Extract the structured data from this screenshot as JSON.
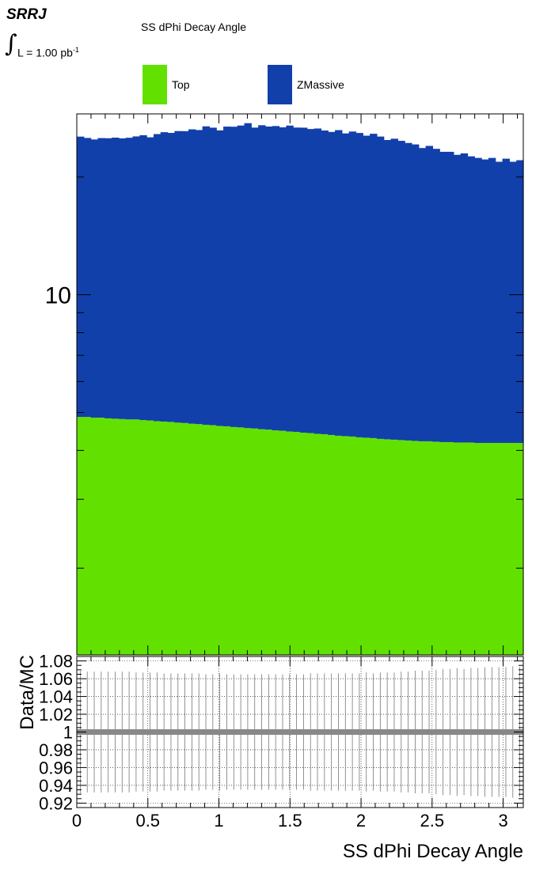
{
  "header": {
    "region": "SRRJ",
    "lumi_prefix": "L = 1.00 pb",
    "lumi_exp": "-1",
    "integral_symbol": "∫"
  },
  "legend": [
    {
      "label": "Top",
      "color": "#62e100"
    },
    {
      "label": "ZMassive",
      "color": "#1240ab"
    }
  ],
  "chart_data": [
    {
      "type": "bar",
      "stacked": true,
      "title": "SS dPhi Decay Angle",
      "xlabel": "",
      "ylabel": "",
      "y_scale": "log",
      "xlim": [
        0,
        3.1416
      ],
      "ylim": [
        1.2,
        29
      ],
      "yticks_labeled": [
        {
          "value": 10,
          "label": "10"
        }
      ],
      "bins": 64,
      "series": [
        {
          "name": "Top",
          "color": "#62e100",
          "values": [
            4.87,
            4.87,
            4.85,
            4.85,
            4.83,
            4.82,
            4.81,
            4.8,
            4.8,
            4.78,
            4.77,
            4.75,
            4.74,
            4.73,
            4.71,
            4.7,
            4.68,
            4.67,
            4.65,
            4.64,
            4.62,
            4.61,
            4.59,
            4.58,
            4.56,
            4.55,
            4.53,
            4.52,
            4.5,
            4.49,
            4.47,
            4.46,
            4.44,
            4.43,
            4.41,
            4.4,
            4.38,
            4.36,
            4.35,
            4.34,
            4.32,
            4.31,
            4.3,
            4.28,
            4.27,
            4.26,
            4.25,
            4.24,
            4.23,
            4.22,
            4.22,
            4.21,
            4.2,
            4.2,
            4.19,
            4.19,
            4.19,
            4.18,
            4.18,
            4.18,
            4.18,
            4.18,
            4.18,
            4.18
          ]
        },
        {
          "name": "ZMassive",
          "color": "#1240ab",
          "values": [
            20.5,
            20.3,
            20.1,
            20.3,
            20.3,
            20.4,
            20.3,
            20.4,
            20.6,
            20.8,
            20.5,
            21.0,
            21.3,
            21.2,
            21.5,
            21.5,
            21.8,
            21.7,
            22.3,
            22.1,
            21.7,
            22.3,
            22.3,
            22.5,
            22.9,
            22.2,
            22.6,
            22.4,
            22.5,
            22.3,
            22.6,
            22.3,
            22.3,
            22.1,
            22.2,
            21.9,
            21.7,
            22.0,
            21.5,
            21.8,
            21.6,
            21.2,
            21.5,
            21.1,
            20.6,
            20.8,
            20.5,
            20.2,
            20.0,
            19.5,
            19.8,
            19.4,
            19.0,
            19.0,
            18.6,
            18.8,
            18.4,
            18.2,
            18.0,
            18.2,
            17.7,
            18.1,
            17.7,
            17.9
          ]
        }
      ]
    },
    {
      "type": "scatter",
      "xlabel": "SS dPhi Decay Angle",
      "ylabel": "Data/MC",
      "xlim": [
        0,
        3.1416
      ],
      "ylim": [
        0.915,
        1.085
      ],
      "grid": true,
      "xticks": [
        {
          "value": 0,
          "label": "0"
        },
        {
          "value": 0.5,
          "label": "0.5"
        },
        {
          "value": 1,
          "label": "1"
        },
        {
          "value": 1.5,
          "label": "1.5"
        },
        {
          "value": 2,
          "label": "2"
        },
        {
          "value": 2.5,
          "label": "2.5"
        },
        {
          "value": 3,
          "label": "3"
        }
      ],
      "yticks": [
        {
          "value": 0.92,
          "label": "0.92"
        },
        {
          "value": 0.94,
          "label": "0.94"
        },
        {
          "value": 0.96,
          "label": "0.96"
        },
        {
          "value": 0.98,
          "label": "0.98"
        },
        {
          "value": 1.0,
          "label": "1"
        },
        {
          "value": 1.02,
          "label": "1.02"
        },
        {
          "value": 1.04,
          "label": "1.04"
        },
        {
          "value": 1.06,
          "label": "1.06"
        },
        {
          "value": 1.08,
          "label": "1.08"
        }
      ],
      "ratio": 1.0,
      "errors": [
        0.069,
        0.068,
        0.068,
        0.068,
        0.068,
        0.068,
        0.068,
        0.068,
        0.067,
        0.067,
        0.067,
        0.067,
        0.066,
        0.066,
        0.066,
        0.066,
        0.066,
        0.066,
        0.065,
        0.065,
        0.066,
        0.065,
        0.065,
        0.065,
        0.065,
        0.065,
        0.065,
        0.065,
        0.065,
        0.065,
        0.065,
        0.065,
        0.065,
        0.066,
        0.066,
        0.066,
        0.066,
        0.066,
        0.066,
        0.066,
        0.066,
        0.067,
        0.066,
        0.067,
        0.067,
        0.067,
        0.068,
        0.068,
        0.069,
        0.069,
        0.069,
        0.07,
        0.071,
        0.071,
        0.072,
        0.071,
        0.072,
        0.072,
        0.073,
        0.073,
        0.073,
        0.073,
        0.074,
        0.073
      ],
      "marker_color": "#888888"
    }
  ]
}
